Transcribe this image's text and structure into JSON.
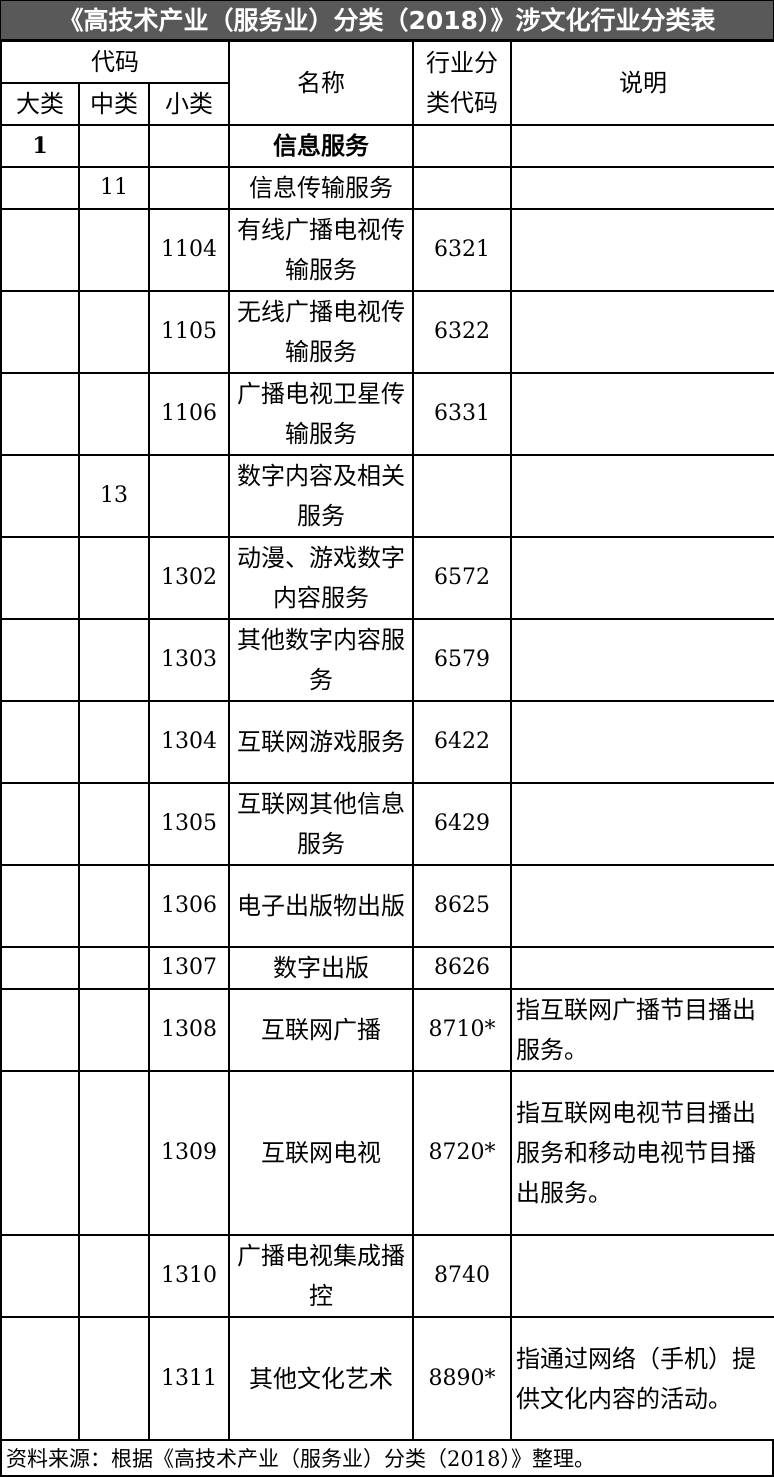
{
  "title": "《高技术产业（服务业）分类（2018）》涉文化行业分类表",
  "headers": {
    "code": "代码",
    "major": "大类",
    "middle": "中类",
    "minor": "小类",
    "name": "名称",
    "industry_code": "行业分类代码",
    "note": "说明"
  },
  "rows": [
    {
      "major": "1",
      "middle": "",
      "minor": "",
      "name": "信息服务",
      "industry_code": "",
      "note": ""
    },
    {
      "major": "",
      "middle": "11",
      "minor": "",
      "name": "信息传输服务",
      "industry_code": "",
      "note": ""
    },
    {
      "major": "",
      "middle": "",
      "minor": "1104",
      "name": "有线广播电视传输服务",
      "industry_code": "6321",
      "note": ""
    },
    {
      "major": "",
      "middle": "",
      "minor": "1105",
      "name": "无线广播电视传输服务",
      "industry_code": "6322",
      "note": ""
    },
    {
      "major": "",
      "middle": "",
      "minor": "1106",
      "name": "广播电视卫星传输服务",
      "industry_code": "6331",
      "note": ""
    },
    {
      "major": "",
      "middle": "13",
      "minor": "",
      "name": "数字内容及相关服务",
      "industry_code": "",
      "note": ""
    },
    {
      "major": "",
      "middle": "",
      "minor": "1302",
      "name": "动漫、游戏数字内容服务",
      "industry_code": "6572",
      "note": ""
    },
    {
      "major": "",
      "middle": "",
      "minor": "1303",
      "name": "其他数字内容服务",
      "industry_code": "6579",
      "note": ""
    },
    {
      "major": "",
      "middle": "",
      "minor": "1304",
      "name": "互联网游戏服务",
      "industry_code": "6422",
      "note": ""
    },
    {
      "major": "",
      "middle": "",
      "minor": "1305",
      "name": "互联网其他信息服务",
      "industry_code": "6429",
      "note": ""
    },
    {
      "major": "",
      "middle": "",
      "minor": "1306",
      "name": "电子出版物出版",
      "industry_code": "8625",
      "note": ""
    },
    {
      "major": "",
      "middle": "",
      "minor": "1307",
      "name": "数字出版",
      "industry_code": "8626",
      "note": ""
    },
    {
      "major": "",
      "middle": "",
      "minor": "1308",
      "name": "互联网广播",
      "industry_code": "8710*",
      "note": "指互联网广播节目播出服务。"
    },
    {
      "major": "",
      "middle": "",
      "minor": "1309",
      "name": "互联网电视",
      "industry_code": "8720*",
      "note": "指互联网电视节目播出服务和移动电视节目播出服务。"
    },
    {
      "major": "",
      "middle": "",
      "minor": "1310",
      "name": "广播电视集成播控",
      "industry_code": "8740",
      "note": ""
    },
    {
      "major": "",
      "middle": "",
      "minor": "1311",
      "name": "其他文化艺术",
      "industry_code": "8890*",
      "note": "指通过网络（手机）提供文化内容的活动。"
    }
  ],
  "footer": "资料来源：根据《高技术产业（服务业）分类（2018）》整理。"
}
